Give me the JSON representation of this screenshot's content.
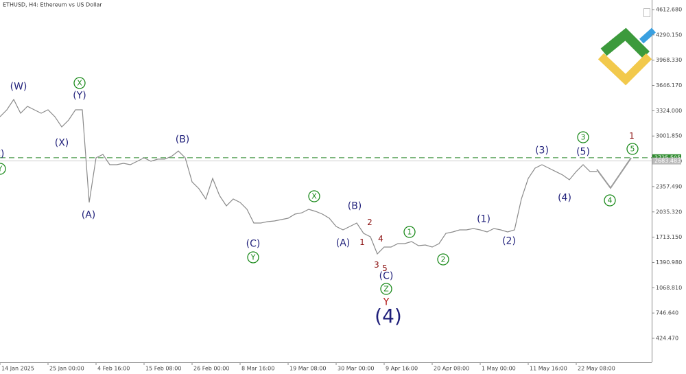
{
  "chart_data": {
    "type": "line",
    "title": "ETHUSD, H4:  Ethereum vs US Dollar",
    "x": [
      0,
      1,
      2,
      3,
      4,
      5,
      6,
      7,
      8,
      9,
      10,
      11,
      12,
      13,
      14,
      15,
      16,
      17,
      18,
      19,
      20,
      21,
      22,
      23,
      24,
      25,
      26,
      27,
      28,
      29,
      30,
      31,
      32,
      33,
      34,
      35,
      36,
      37,
      38,
      39,
      40,
      41,
      42,
      43,
      44,
      45,
      46,
      47,
      48,
      49,
      50,
      51,
      52,
      53,
      54,
      55,
      56,
      57,
      58,
      59,
      60,
      61,
      62,
      63,
      64,
      65,
      66,
      67,
      68,
      69,
      70,
      71,
      72,
      73,
      74,
      75,
      76,
      77,
      78,
      79,
      80,
      81,
      82,
      83,
      84,
      85,
      86,
      87
    ],
    "values": [
      3248,
      3336,
      3467,
      3292,
      3380,
      3336,
      3292,
      3336,
      3248,
      3118,
      3205,
      3336,
      3336,
      2156,
      2724,
      2768,
      2637,
      2637,
      2654,
      2637,
      2680,
      2724,
      2680,
      2707,
      2707,
      2742,
      2811,
      2724,
      2418,
      2331,
      2199,
      2462,
      2243,
      2112,
      2199,
      2156,
      2068,
      1893,
      1893,
      1911,
      1920,
      1937,
      1955,
      2007,
      2024,
      2068,
      2042,
      2007,
      1955,
      1850,
      1806,
      1850,
      1893,
      1762,
      1718,
      1500,
      1587,
      1587,
      1631,
      1631,
      1657,
      1605,
      1614,
      1587,
      1631,
      1762,
      1780,
      1806,
      1806,
      1823,
      1806,
      1780,
      1823,
      1806,
      1780,
      1806,
      2199,
      2462,
      2593,
      2637,
      2593,
      2550,
      2506,
      2444,
      2550,
      2637,
      2550,
      2550
    ],
    "color": "#8a8a8a",
    "forecast": {
      "x": [
        87,
        89,
        92
      ],
      "values": [
        2576,
        2340,
        2724
      ],
      "color": "#9a9a9a"
    },
    "xlim": [
      0,
      95
    ],
    "ylim": [
      118.4,
      4735.1
    ],
    "xticks": [
      {
        "value": 0,
        "label": "14 Jan 2025"
      },
      {
        "value": 7,
        "label": "25 Jan 00:00"
      },
      {
        "value": 14,
        "label": "4 Feb 16:00"
      },
      {
        "value": 21,
        "label": "15 Feb 08:00"
      },
      {
        "value": 28,
        "label": "26 Feb 00:00"
      },
      {
        "value": 35,
        "label": "8 Mar 16:00"
      },
      {
        "value": 42,
        "label": "19 Mar 08:00"
      },
      {
        "value": 49,
        "label": "30 Mar 00:00"
      },
      {
        "value": 56,
        "label": "9 Apr 16:00"
      },
      {
        "value": 63,
        "label": "20 Apr 08:00"
      },
      {
        "value": 70,
        "label": "1 May 00:00"
      },
      {
        "value": 77,
        "label": "11 May 16:00"
      },
      {
        "value": 84,
        "label": "22 May 08:00"
      }
    ],
    "yticks": [
      {
        "value": 4612.68,
        "label": "4612.680"
      },
      {
        "value": 4290.15,
        "label": "4290.150"
      },
      {
        "value": 3968.33,
        "label": "3968.330"
      },
      {
        "value": 3646.17,
        "label": "3646.170"
      },
      {
        "value": 3324,
        "label": "3324.000"
      },
      {
        "value": 3001.85,
        "label": "3001.850"
      },
      {
        "value": 2679.69,
        "label": "2679.690"
      },
      {
        "value": 2357.49,
        "label": "2357.490"
      },
      {
        "value": 2035.32,
        "label": "2035.320"
      },
      {
        "value": 1713.15,
        "label": "1713.150"
      },
      {
        "value": 1390.98,
        "label": "1390.980"
      },
      {
        "value": 1068.81,
        "label": "1068.810"
      },
      {
        "value": 746.64,
        "label": "746.640"
      },
      {
        "value": 424.47,
        "label": "424.470"
      }
    ],
    "price_lines": [
      {
        "value": 2725.505,
        "label": "2725.505",
        "color": "#2e8b2e",
        "dashed": true
      },
      {
        "value": 2683.483,
        "label": "2683.483",
        "color": "#bbbbbb",
        "dashed": false
      }
    ],
    "annotations": [
      {
        "text": "(C)",
        "color": "#1f1f7a"
      },
      {
        "text": "Y",
        "color": "#1a8a1a",
        "circled": true
      },
      {
        "text": "(W)",
        "color": "#1f1f7a"
      },
      {
        "text": "X",
        "color": "#1a8a1a",
        "circled": true
      },
      {
        "text": "(Y)",
        "color": "#1f1f7a"
      },
      {
        "text": "(X)",
        "color": "#1f1f7a"
      },
      {
        "text": "(A)",
        "color": "#1f1f7a"
      },
      {
        "text": "(B)",
        "color": "#1f1f7a"
      },
      {
        "text": "(C)",
        "color": "#1f1f7a"
      },
      {
        "text": "Y",
        "color": "#1a8a1a",
        "circled": true
      },
      {
        "text": "X",
        "color": "#1a8a1a",
        "circled": true
      },
      {
        "text": "(B)",
        "color": "#1f1f7a"
      },
      {
        "text": "(A)",
        "color": "#1f1f7a"
      },
      {
        "text": "2",
        "color": "#8b1010"
      },
      {
        "text": "1",
        "color": "#8b1010"
      },
      {
        "text": "4",
        "color": "#8b1010"
      },
      {
        "text": "3",
        "color": "#8b1010"
      },
      {
        "text": "5",
        "color": "#8b1010"
      },
      {
        "text": "(C)",
        "color": "#1f1f7a"
      },
      {
        "text": "Z",
        "color": "#1a8a1a",
        "circled": true
      },
      {
        "text": "Y",
        "color": "#b01010"
      },
      {
        "text": "(4)",
        "color": "#1f1f7a"
      },
      {
        "text": "1",
        "color": "#1a8a1a",
        "circled": true
      },
      {
        "text": "2",
        "color": "#1a8a1a",
        "circled": true
      },
      {
        "text": "(1)",
        "color": "#1f1f7a"
      },
      {
        "text": "(2)",
        "color": "#1f1f7a"
      },
      {
        "text": "(3)",
        "color": "#1f1f7a"
      },
      {
        "text": "3",
        "color": "#1a8a1a",
        "circled": true
      },
      {
        "text": "(5)",
        "color": "#1f1f7a"
      },
      {
        "text": "1",
        "color": "#8b1010"
      },
      {
        "text": "5",
        "color": "#1a8a1a",
        "circled": true
      },
      {
        "text": "(4)",
        "color": "#1f1f7a"
      },
      {
        "text": "4",
        "color": "#1a8a1a",
        "circled": true
      }
    ]
  }
}
